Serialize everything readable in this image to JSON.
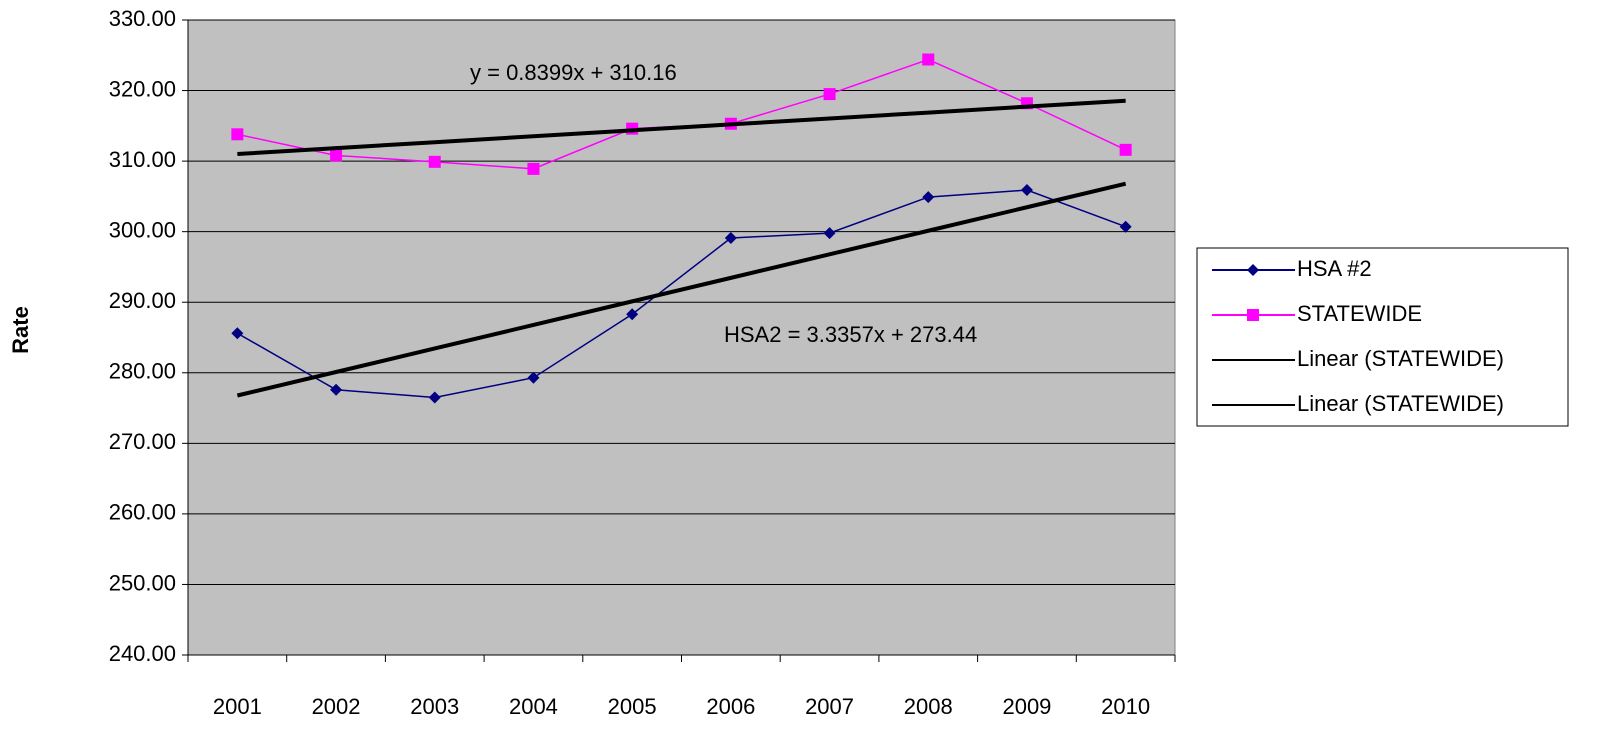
{
  "chart_data": {
    "type": "line",
    "y_axis_label": "Rate",
    "categories": [
      "2001",
      "2002",
      "2003",
      "2004",
      "2005",
      "2006",
      "2007",
      "2008",
      "2009",
      "2010"
    ],
    "series": [
      {
        "name": "HSA #2",
        "color": "#000080",
        "marker": "diamond",
        "values": [
          285.6,
          277.6,
          276.5,
          279.3,
          288.3,
          299.1,
          299.8,
          304.9,
          305.9,
          300.7
        ]
      },
      {
        "name": "STATEWIDE",
        "color": "#ff00ff",
        "marker": "square",
        "values": [
          313.8,
          310.8,
          309.9,
          308.9,
          314.6,
          315.3,
          319.5,
          324.4,
          318.2,
          311.6
        ]
      },
      {
        "name": "Linear (STATEWIDE)",
        "color": "#000000",
        "marker": "none",
        "values": [
          311.0,
          311.84,
          312.68,
          313.52,
          314.36,
          315.2,
          316.04,
          316.88,
          317.72,
          318.56
        ]
      },
      {
        "name": "Linear (STATEWIDE)",
        "color": "#000000",
        "marker": "none",
        "values": [
          276.78,
          280.11,
          283.45,
          286.78,
          290.12,
          293.45,
          296.79,
          300.13,
          303.46,
          306.8
        ]
      }
    ],
    "annotations": [
      "y = 0.8399x + 310.16",
      "HSA2 = 3.3357x + 273.44"
    ],
    "ylim": [
      240,
      330
    ],
    "yticks": [
      {
        "value": 240,
        "label": "240.00"
      },
      {
        "value": 250,
        "label": "250.00"
      },
      {
        "value": 260,
        "label": "260.00"
      },
      {
        "value": 270,
        "label": "270.00"
      },
      {
        "value": 280,
        "label": "280.00"
      },
      {
        "value": 290,
        "label": "290.00"
      },
      {
        "value": 300,
        "label": "300.00"
      },
      {
        "value": 310,
        "label": "310.00"
      },
      {
        "value": 320,
        "label": "320.00"
      },
      {
        "value": 330,
        "label": "330.00"
      }
    ],
    "grid": true,
    "legend": "right"
  }
}
